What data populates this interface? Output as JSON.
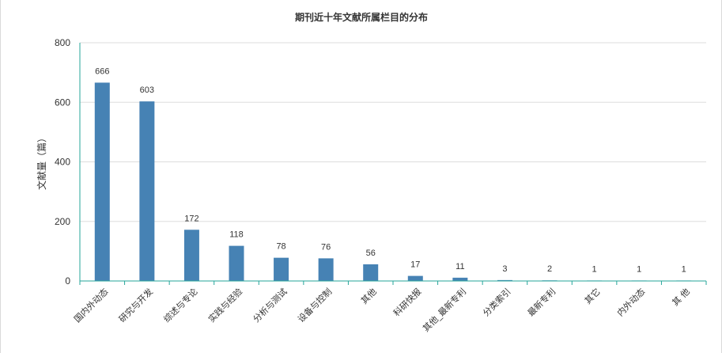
{
  "chart_data": {
    "type": "bar",
    "title": "期刊近十年文献所属栏目的分布",
    "xlabel": "",
    "ylabel": "文献量（篇）",
    "ylim": [
      0,
      800
    ],
    "yticks": [
      0,
      200,
      400,
      600,
      800
    ],
    "grid": true,
    "categories": [
      "国内外动态",
      "研究与开发",
      "综述与专论",
      "实践与经验",
      "分析与测试",
      "设备与控制",
      "其他",
      "科研快报",
      "其他_最新专利",
      "分类索引",
      "最新专利",
      "其它",
      "内外动态",
      "其 他"
    ],
    "values": [
      666,
      603,
      172,
      118,
      78,
      76,
      56,
      17,
      11,
      3,
      2,
      1,
      1,
      1
    ]
  },
  "colors": {
    "bar": "#4682b4",
    "axis": "#26a69a",
    "grid": "#dddddd",
    "text": "#333333"
  }
}
